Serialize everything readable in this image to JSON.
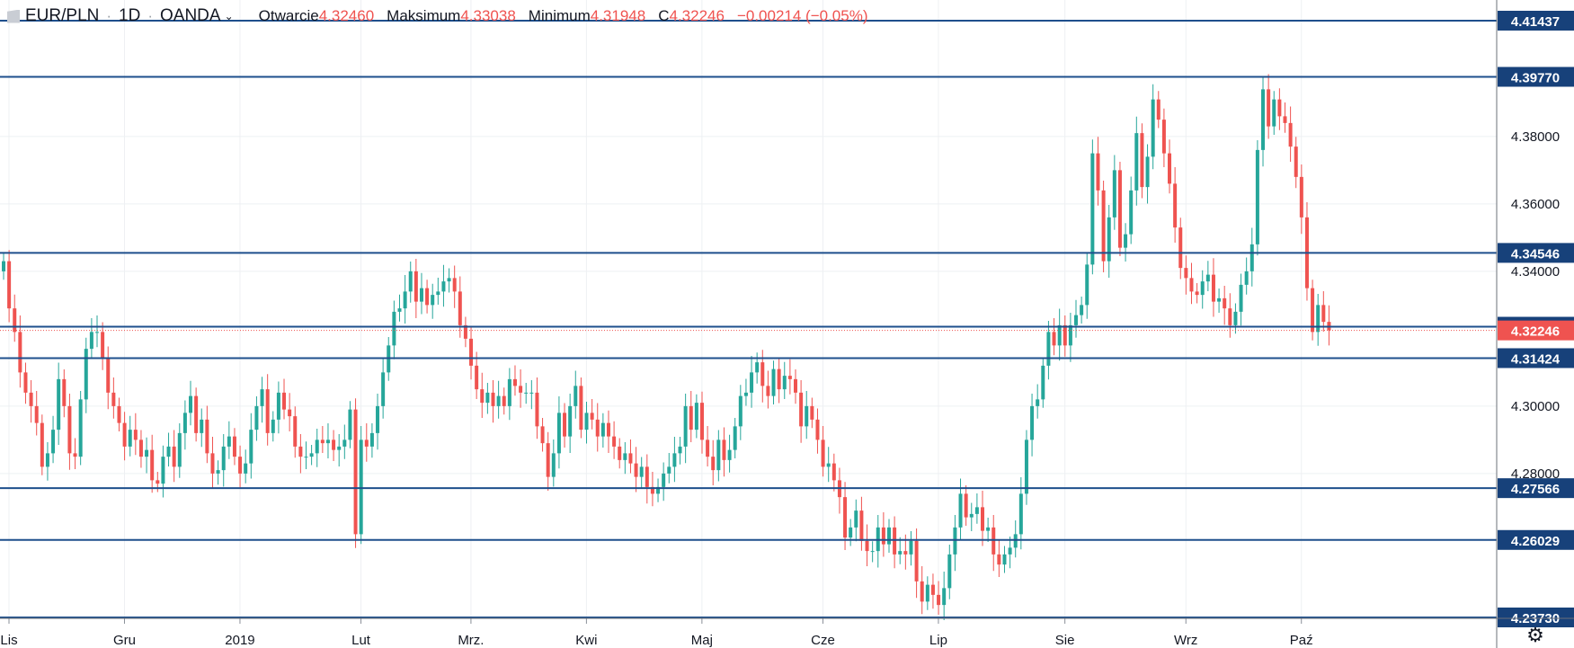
{
  "header": {
    "symbol": "EUR/PLN",
    "interval": "1D",
    "source": "OANDA",
    "open_label": "Otwarcie",
    "open_value": "4.32460",
    "high_label": "Maksimum",
    "high_value": "4.33038",
    "low_label": "Minimum",
    "low_value": "4.31948",
    "close_label": "C",
    "close_value": "4.32246",
    "change": "−0.00214 (−0.05%)"
  },
  "chart_data": {
    "type": "candlestick",
    "y_range": [
      4.2285,
      4.4205
    ],
    "y_ticks": [
      "4.38000",
      "4.36000",
      "4.34000",
      "4.30000",
      "4.28000"
    ],
    "x_labels": [
      {
        "label": "Lis",
        "index": 0
      },
      {
        "label": "Gru",
        "index": 21
      },
      {
        "label": "2019",
        "index": 42
      },
      {
        "label": "Lut",
        "index": 64
      },
      {
        "label": "Mrz.",
        "index": 84
      },
      {
        "label": "Kwi",
        "index": 105
      },
      {
        "label": "Maj",
        "index": 126
      },
      {
        "label": "Cze",
        "index": 148
      },
      {
        "label": "Lip",
        "index": 169
      },
      {
        "label": "Sie",
        "index": 192
      },
      {
        "label": "Wrz",
        "index": 214
      },
      {
        "label": "Paź",
        "index": 235
      }
    ],
    "horizontal_levels": [
      "4.41437",
      "4.39770",
      "4.34546",
      "4.32356",
      "4.31424",
      "4.27566",
      "4.26029",
      "4.23730"
    ],
    "last_price": "4.32246",
    "colors": {
      "up": "#26a69a",
      "down": "#ef5350",
      "level": "#1e4f8c",
      "level_label_bg": "#17417a",
      "last_price_bg": "#ef5350"
    },
    "candles_close": [
      4.343,
      4.329,
      4.322,
      4.31,
      4.304,
      4.3,
      4.295,
      4.282,
      4.286,
      4.293,
      4.308,
      4.3,
      4.286,
      4.285,
      4.302,
      4.317,
      4.322,
      4.322,
      4.314,
      4.304,
      4.3,
      4.295,
      4.288,
      4.293,
      4.29,
      4.285,
      4.287,
      4.278,
      4.277,
      4.285,
      4.288,
      4.282,
      4.292,
      4.298,
      4.303,
      4.292,
      4.296,
      4.286,
      4.28,
      4.281,
      4.288,
      4.291,
      4.285,
      4.28,
      4.283,
      4.293,
      4.3,
      4.305,
      4.292,
      4.296,
      4.304,
      4.299,
      4.297,
      4.288,
      4.285,
      4.285,
      4.286,
      4.29,
      4.289,
      4.29,
      4.287,
      4.288,
      4.29,
      4.299,
      4.262,
      4.29,
      4.288,
      4.292,
      4.3,
      4.31,
      4.318,
      4.328,
      4.329,
      4.334,
      4.34,
      4.331,
      4.335,
      4.33,
      4.333,
      4.334,
      4.337,
      4.338,
      4.334,
      4.324,
      4.32,
      4.312,
      4.305,
      4.301,
      4.304,
      4.3,
      4.303,
      4.3,
      4.308,
      4.306,
      4.304,
      4.304,
      4.304,
      4.294,
      4.289,
      4.279,
      4.286,
      4.298,
      4.291,
      4.3,
      4.306,
      4.293,
      4.298,
      4.296,
      4.291,
      4.295,
      4.291,
      4.288,
      4.284,
      4.286,
      4.283,
      4.279,
      4.282,
      4.276,
      4.274,
      4.276,
      4.28,
      4.282,
      4.286,
      4.288,
      4.3,
      4.293,
      4.301,
      4.29,
      4.285,
      4.281,
      4.29,
      4.284,
      4.287,
      4.294,
      4.303,
      4.304,
      4.31,
      4.313,
      4.306,
      4.303,
      4.311,
      4.305,
      4.309,
      4.308,
      4.304,
      4.294,
      4.3,
      4.296,
      4.29,
      4.282,
      4.283,
      4.278,
      4.273,
      4.261,
      4.264,
      4.269,
      4.26,
      4.257,
      4.257,
      4.264,
      4.259,
      4.264,
      4.256,
      4.257,
      4.256,
      4.26,
      4.248,
      4.242,
      4.247,
      4.244,
      4.241,
      4.246,
      4.256,
      4.264,
      4.274,
      4.267,
      4.268,
      4.27,
      4.263,
      4.264,
      4.256,
      4.253,
      4.256,
      4.258,
      4.262,
      4.274,
      4.29,
      4.3,
      4.302,
      4.312,
      4.322,
      4.318,
      4.324,
      4.318,
      4.324,
      4.327,
      4.33,
      4.342,
      4.375,
      4.364,
      4.343,
      4.356,
      4.37,
      4.347,
      4.351,
      4.364,
      4.381,
      4.365,
      4.374,
      4.391,
      4.385,
      4.375,
      4.366,
      4.353,
      4.341,
      4.338,
      4.334,
      4.333,
      4.337,
      4.339,
      4.331,
      4.332,
      4.329,
      4.324,
      4.328,
      4.336,
      4.34,
      4.348,
      4.376,
      4.394,
      4.383,
      4.391,
      4.386,
      4.384,
      4.377,
      4.368,
      4.356,
      4.335,
      4.322,
      4.33,
      4.325,
      4.3225
    ]
  }
}
